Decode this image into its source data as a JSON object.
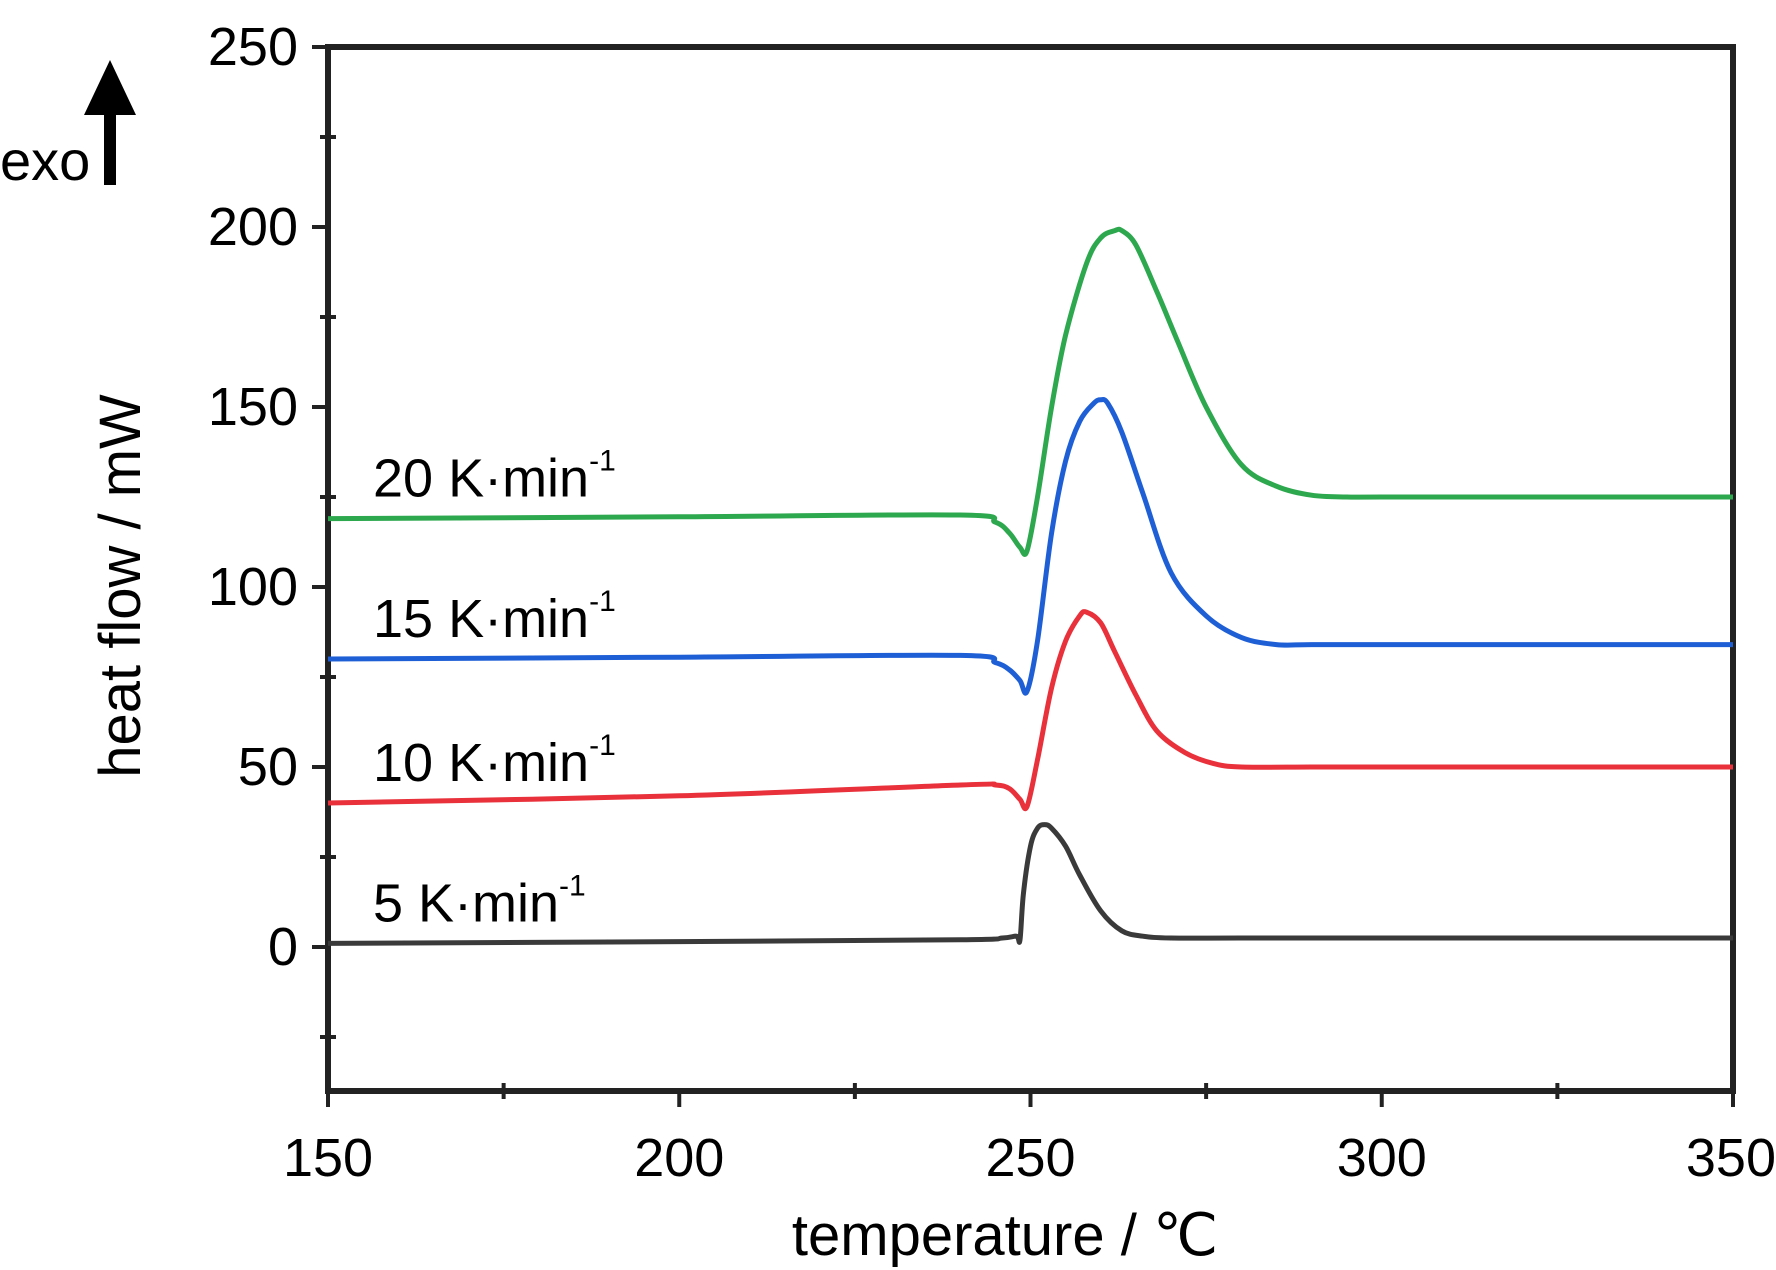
{
  "chart_data": {
    "type": "line",
    "xlabel": "temperature / ℃",
    "ylabel": "heat flow / mW",
    "xlim": [
      150,
      350
    ],
    "ylim": [
      -40,
      250
    ],
    "xticks": [
      150,
      200,
      250,
      300,
      350
    ],
    "yticks": [
      0,
      50,
      100,
      150,
      200,
      250
    ],
    "grid": false,
    "annotation": "exo",
    "series": [
      {
        "name": "20 K·min-1",
        "label_main": "20 K·min",
        "label_sup": "-1",
        "color": "#2ea84f",
        "x": [
          150,
          200,
          240,
          245,
          247,
          248.5,
          249.5,
          251,
          253,
          255,
          258,
          260,
          262,
          263,
          265,
          268,
          271,
          275,
          280,
          285,
          290,
          295,
          300,
          320,
          350
        ],
        "y": [
          119,
          119.5,
          120,
          118,
          115,
          111,
          110,
          125,
          150,
          170,
          190,
          197,
          199,
          199,
          195,
          182,
          168,
          150,
          134,
          128,
          125.5,
          125,
          125,
          125,
          125
        ]
      },
      {
        "name": "15 K·min-1",
        "label_main": "15 K·min",
        "label_sup": "-1",
        "color": "#1f5fd6",
        "x": [
          150,
          200,
          240,
          245,
          247,
          248.5,
          249.5,
          251,
          253,
          255,
          257,
          259,
          260,
          261,
          263,
          266,
          270,
          275,
          280,
          285,
          290,
          300,
          350
        ],
        "y": [
          80,
          80.5,
          81,
          79,
          77,
          74,
          71,
          85,
          115,
          135,
          146,
          151,
          152,
          151,
          143,
          126,
          104,
          92,
          86,
          84,
          84,
          84,
          84
        ]
      },
      {
        "name": "10 K·min-1",
        "label_main": "10 K·min",
        "label_sup": "-1",
        "color": "#e8313a",
        "x": [
          150,
          200,
          240,
          245,
          247,
          248.5,
          249.5,
          251,
          253,
          255,
          257,
          258,
          260,
          262,
          265,
          268,
          272,
          276,
          280,
          290,
          300,
          350
        ],
        "y": [
          40,
          42,
          45,
          45,
          44,
          41,
          39,
          52,
          72,
          85,
          92,
          93,
          90,
          82,
          70,
          60,
          54,
          51,
          50,
          50,
          50,
          50
        ]
      },
      {
        "name": "5 K·min-1",
        "label_main": "5 K·min",
        "label_sup": "-1",
        "color": "#3a3a3a",
        "x": [
          150,
          200,
          240,
          246,
          248,
          248.5,
          249,
          250,
          251,
          252,
          253,
          255,
          257,
          260,
          263,
          266,
          270,
          280,
          300,
          350
        ],
        "y": [
          1,
          1.5,
          2,
          2.5,
          3,
          2,
          15,
          28,
          33,
          34,
          33,
          28,
          20,
          10,
          4.5,
          3,
          2.5,
          2.5,
          2.5,
          2.5
        ]
      }
    ]
  }
}
